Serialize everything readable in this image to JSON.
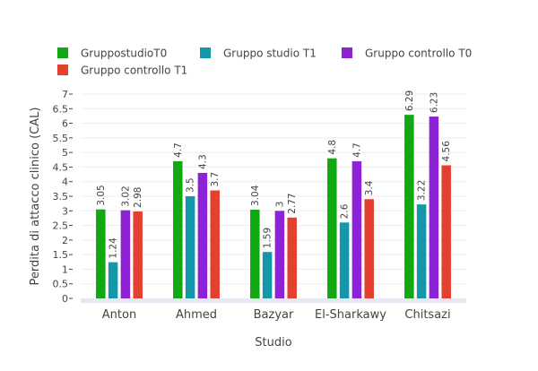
{
  "chart_data": {
    "type": "bar",
    "title": "",
    "xlabel": "Studio",
    "ylabel": "Perdita di attacco clinico (CAL)",
    "ylim": [
      0,
      7
    ],
    "yticks": [
      "0",
      "0.5",
      "1",
      "1.5",
      "2",
      "2.5",
      "3",
      "3.5",
      "4",
      "4.5",
      "5",
      "5.5",
      "6",
      "6.5",
      "7"
    ],
    "grid": true,
    "legend_position": "top",
    "categories": [
      "Anton",
      "Ahmed",
      "Bazyar",
      "El-Sharkawy",
      "Chitsazi"
    ],
    "series": [
      {
        "name": "GruppostudioT0",
        "color": "#12a812",
        "values": [
          3.05,
          4.7,
          3.04,
          4.8,
          6.29
        ],
        "labels": [
          "3.05",
          "4.7",
          "3.04",
          "4.8",
          "6.29"
        ]
      },
      {
        "name": "Gruppo studio T1",
        "color": "#1497a8",
        "values": [
          1.24,
          3.5,
          1.59,
          2.6,
          3.22
        ],
        "labels": [
          "1.24",
          "3.5",
          "1.59",
          "2.6",
          "3.22"
        ]
      },
      {
        "name": "Gruppo controllo T0",
        "color": "#8e22d6",
        "values": [
          3.02,
          4.3,
          3.0,
          4.7,
          6.23
        ],
        "labels": [
          "3.02",
          "4.3",
          "3",
          "4.7",
          "6.23"
        ]
      },
      {
        "name": "Gruppo controllo T1",
        "color": "#e4402f",
        "values": [
          2.98,
          3.7,
          2.77,
          3.4,
          4.56
        ],
        "labels": [
          "2.98",
          "3.7",
          "2.77",
          "3.4",
          "4.56"
        ]
      }
    ]
  }
}
